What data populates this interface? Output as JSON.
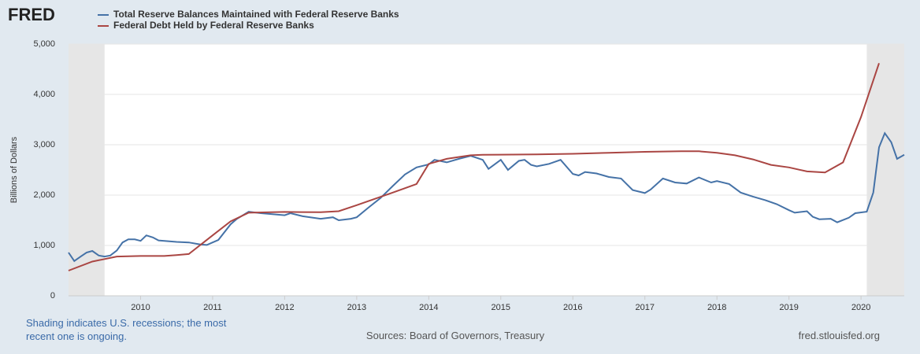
{
  "chart_data": {
    "type": "line",
    "logo": "FRED",
    "y_label": "Billions of Dollars",
    "note": "Shading indicates U.S. recessions; the most recent one is ongoing.",
    "source": "Sources: Board of Governors, Treasury",
    "credit": "fred.stlouisfed.org",
    "xlim": [
      2009.0,
      2020.6
    ],
    "xticks": [
      2010,
      2011,
      2012,
      2013,
      2014,
      2015,
      2016,
      2017,
      2018,
      2019,
      2020
    ],
    "ylim": [
      0,
      5000
    ],
    "yticks": [
      0,
      {
        "value": 1000,
        "label": "1,000"
      },
      {
        "value": 2000,
        "label": "2,000"
      },
      {
        "value": 3000,
        "label": "3,000"
      },
      {
        "value": 4000,
        "label": "4,000"
      },
      {
        "value": 5000,
        "label": "5,000"
      }
    ],
    "grid": true,
    "recessions": [
      [
        2009.0,
        2009.5
      ],
      [
        2020.08,
        2020.6
      ]
    ],
    "series": [
      {
        "name": "Total Reserve Balances Maintained with Federal Reserve Banks",
        "color": "#4572a7",
        "x": [
          2009.0,
          2009.08,
          2009.17,
          2009.25,
          2009.33,
          2009.42,
          2009.5,
          2009.58,
          2009.67,
          2009.75,
          2009.83,
          2009.92,
          2010.0,
          2010.08,
          2010.17,
          2010.25,
          2010.5,
          2010.67,
          2010.83,
          2010.92,
          2011.0,
          2011.08,
          2011.25,
          2011.33,
          2011.5,
          2011.67,
          2011.83,
          2012.0,
          2012.08,
          2012.25,
          2012.5,
          2012.67,
          2012.75,
          2012.92,
          2013.0,
          2013.17,
          2013.33,
          2013.5,
          2013.67,
          2013.83,
          2014.0,
          2014.08,
          2014.25,
          2014.42,
          2014.58,
          2014.75,
          2014.83,
          2015.0,
          2015.1,
          2015.25,
          2015.33,
          2015.42,
          2015.5,
          2015.67,
          2015.83,
          2016.0,
          2016.08,
          2016.17,
          2016.33,
          2016.5,
          2016.67,
          2016.83,
          2017.0,
          2017.08,
          2017.25,
          2017.42,
          2017.58,
          2017.75,
          2017.92,
          2018.0,
          2018.17,
          2018.33,
          2018.5,
          2018.67,
          2018.83,
          2019.0,
          2019.08,
          2019.25,
          2019.33,
          2019.42,
          2019.58,
          2019.67,
          2019.83,
          2019.92,
          2020.08,
          2020.17,
          2020.25,
          2020.33,
          2020.42,
          2020.5,
          2020.6
        ],
        "values": [
          860,
          690,
          780,
          860,
          890,
          800,
          780,
          800,
          900,
          1060,
          1120,
          1120,
          1090,
          1200,
          1160,
          1100,
          1070,
          1060,
          1020,
          1010,
          1060,
          1110,
          1420,
          1520,
          1670,
          1640,
          1620,
          1600,
          1640,
          1580,
          1530,
          1560,
          1500,
          1530,
          1560,
          1760,
          1940,
          2180,
          2410,
          2550,
          2610,
          2700,
          2650,
          2720,
          2780,
          2700,
          2520,
          2700,
          2500,
          2680,
          2700,
          2600,
          2570,
          2620,
          2700,
          2420,
          2390,
          2460,
          2430,
          2360,
          2330,
          2100,
          2040,
          2110,
          2330,
          2250,
          2230,
          2350,
          2250,
          2280,
          2220,
          2050,
          1970,
          1900,
          1820,
          1700,
          1650,
          1680,
          1570,
          1520,
          1530,
          1460,
          1550,
          1640,
          1670,
          2050,
          2950,
          3230,
          3050,
          2720,
          2800
        ]
      },
      {
        "name": "Federal Debt Held by Federal Reserve Banks",
        "color": "#aa4643",
        "x": [
          2009.0,
          2009.33,
          2009.67,
          2010.0,
          2010.33,
          2010.5,
          2010.67,
          2011.0,
          2011.25,
          2011.5,
          2012.0,
          2012.5,
          2012.75,
          2013.0,
          2013.5,
          2013.83,
          2014.0,
          2014.25,
          2014.58,
          2014.75,
          2015.5,
          2016.0,
          2016.5,
          2017.0,
          2017.5,
          2017.75,
          2018.0,
          2018.25,
          2018.5,
          2018.75,
          2019.0,
          2019.25,
          2019.5,
          2019.75,
          2020.0,
          2020.25
        ],
        "values": [
          500,
          680,
          780,
          790,
          790,
          810,
          830,
          1200,
          1480,
          1650,
          1665,
          1660,
          1680,
          1800,
          2050,
          2220,
          2620,
          2720,
          2790,
          2800,
          2810,
          2820,
          2840,
          2860,
          2870,
          2870,
          2840,
          2790,
          2710,
          2600,
          2550,
          2470,
          2450,
          2650,
          3550,
          4620
        ]
      }
    ]
  }
}
